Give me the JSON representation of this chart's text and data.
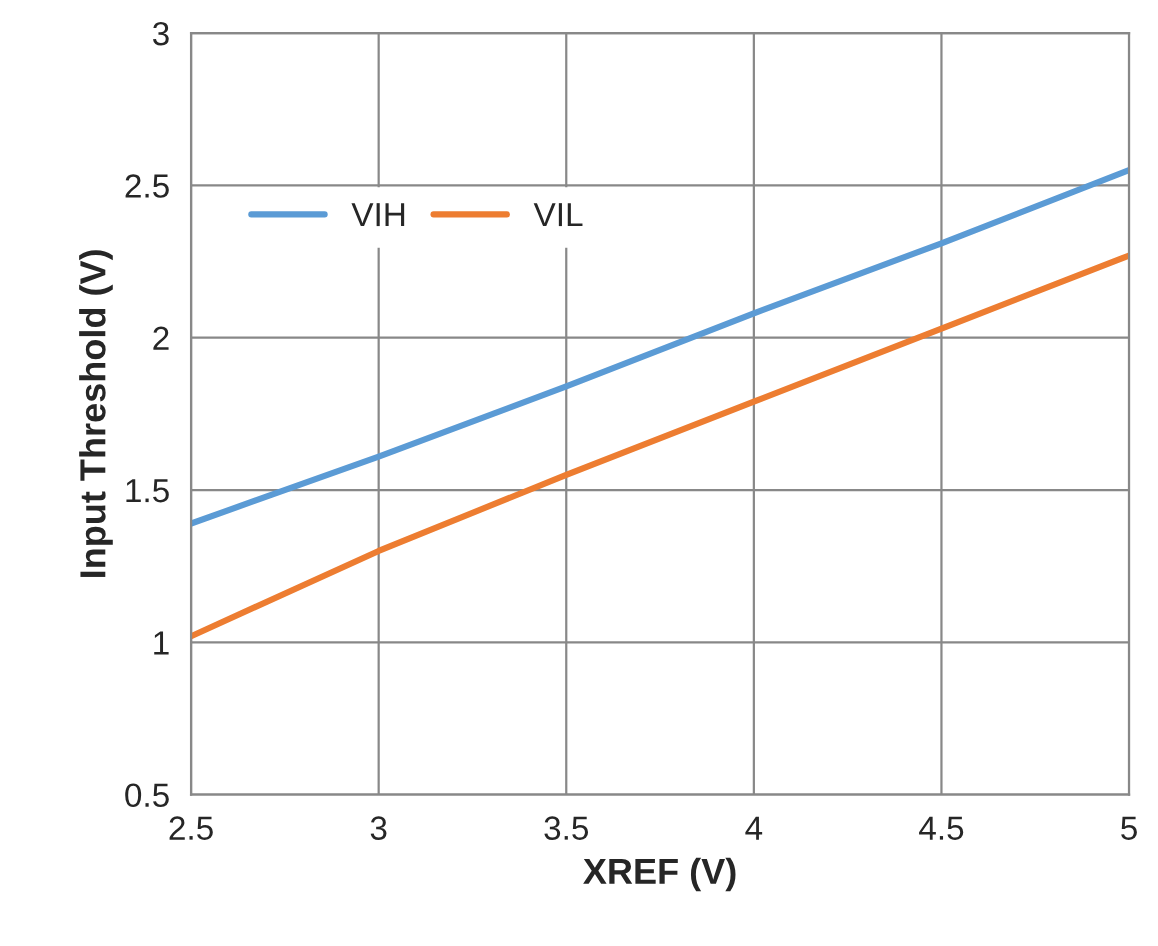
{
  "chart_data": {
    "type": "line",
    "xlabel": "XREF (V)",
    "ylabel": "Input Threshold (V)",
    "x": [
      2.5,
      3,
      3.5,
      4,
      4.5,
      5
    ],
    "series": [
      {
        "name": "VIH",
        "color": "#5b9bd5",
        "values": [
          1.39,
          1.61,
          1.84,
          2.08,
          2.31,
          2.55
        ]
      },
      {
        "name": "VIL",
        "color": "#ed7d31",
        "values": [
          1.02,
          1.3,
          1.55,
          1.79,
          2.03,
          2.27
        ]
      }
    ],
    "xlim": [
      2.5,
      5
    ],
    "xticks": [
      2.5,
      3,
      3.5,
      4,
      4.5,
      5
    ],
    "ylim": [
      0.5,
      3
    ],
    "yticks": [
      0.5,
      1,
      1.5,
      2,
      2.5,
      3
    ],
    "grid": true,
    "legend": "top left",
    "marker": "none",
    "line_style": "solid"
  }
}
